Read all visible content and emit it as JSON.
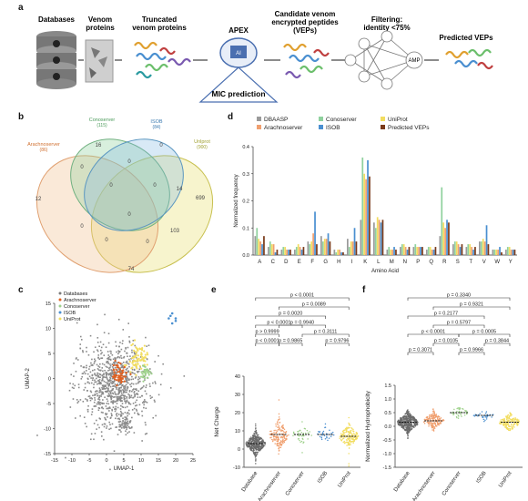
{
  "panel_letters": [
    "a",
    "b",
    "c",
    "d",
    "e",
    "f"
  ],
  "panel_a": {
    "steps": [
      "Databases",
      "Venom proteins",
      "Truncated venom proteins",
      "APEX",
      "Candidate venom encrypted peptides (VEPs)",
      "Filtering: identity <75%",
      "Predicted VEPs"
    ],
    "apex_chip": "AI",
    "mic_label": "MIC prediction",
    "amp_label": "AMP"
  },
  "panel_b": {
    "sets": [
      {
        "name": "Conoserver",
        "count": "(115)",
        "color": "#8fd19e"
      },
      {
        "name": "ISOB",
        "count": "(84)",
        "color": "#7fb6e0"
      },
      {
        "name": "Arachnoserver",
        "count": "(86)",
        "color": "#f0a070"
      },
      {
        "name": "Unlprot",
        "count": "(900)",
        "color": "#e8e070"
      }
    ],
    "regions": [
      "12",
      "16",
      "0",
      "699",
      "0",
      "0",
      "14",
      "0",
      "0",
      "0",
      "0",
      "103",
      "0",
      "0",
      "74"
    ]
  },
  "panel_c": {
    "legend": [
      "Databases",
      "Arachnoserver",
      "Conoserver",
      "ISOB",
      "UniProt"
    ],
    "colors": [
      "#7a7a7a",
      "#e06020",
      "#9dd18a",
      "#4a8fd0",
      "#f2dd60"
    ],
    "chart_data": {
      "type": "scatter",
      "xlabel": "UMAP-1",
      "ylabel": "UMAP-2",
      "xlim": [
        -15,
        25
      ],
      "ylim": [
        -15,
        15
      ],
      "xticks": [
        "-15",
        "-10",
        "-5",
        "0",
        "5",
        "10",
        "15",
        "20",
        "25"
      ],
      "yticks": [
        "15",
        "10",
        "5",
        "0",
        "-5",
        "-10",
        "-15"
      ]
    }
  },
  "panel_d": {
    "legend": [
      {
        "name": "DBAASP",
        "color": "#9a9a9a"
      },
      {
        "name": "Conoserver",
        "color": "#8fd19e"
      },
      {
        "name": "UniProt",
        "color": "#f2dd60"
      },
      {
        "name": "Arachnoserver",
        "color": "#f0a070"
      },
      {
        "name": "ISOB",
        "color": "#4a8fd0"
      },
      {
        "name": "Predicted VEPs",
        "color": "#7a3a1a"
      }
    ],
    "chart_data": {
      "type": "bar",
      "xlabel": "Amino Acid",
      "ylabel": "Normalized frequency",
      "ylim": [
        0,
        0.4
      ],
      "yticks": [
        "0.4",
        "0.3",
        "0.2",
        "0.1",
        "0.0"
      ],
      "categories": [
        "A",
        "C",
        "D",
        "E",
        "F",
        "G",
        "H",
        "I",
        "K",
        "L",
        "M",
        "N",
        "P",
        "Q",
        "R",
        "S",
        "T",
        "V",
        "W",
        "Y"
      ],
      "series": [
        {
          "name": "DBAASP",
          "values": [
            0.07,
            0.03,
            0.02,
            0.02,
            0.05,
            0.07,
            0.02,
            0.06,
            0.13,
            0.12,
            0.02,
            0.03,
            0.03,
            0.02,
            0.07,
            0.04,
            0.03,
            0.05,
            0.02,
            0.02
          ]
        },
        {
          "name": "Conoserver",
          "values": [
            0.1,
            0.05,
            0.03,
            0.03,
            0.04,
            0.05,
            0.01,
            0.03,
            0.36,
            0.1,
            0.03,
            0.04,
            0.04,
            0.03,
            0.25,
            0.05,
            0.04,
            0.05,
            0.02,
            0.03
          ]
        },
        {
          "name": "UniProt",
          "values": [
            0.06,
            0.04,
            0.03,
            0.04,
            0.05,
            0.06,
            0.02,
            0.05,
            0.3,
            0.14,
            0.02,
            0.04,
            0.03,
            0.03,
            0.12,
            0.05,
            0.04,
            0.06,
            0.02,
            0.03
          ]
        },
        {
          "name": "Arachnoserver",
          "values": [
            0.05,
            0.04,
            0.02,
            0.03,
            0.08,
            0.06,
            0.02,
            0.05,
            0.28,
            0.13,
            0.02,
            0.03,
            0.03,
            0.02,
            0.1,
            0.04,
            0.03,
            0.05,
            0.02,
            0.02
          ]
        },
        {
          "name": "ISOB",
          "values": [
            0.04,
            0.01,
            0.02,
            0.02,
            0.16,
            0.08,
            0.01,
            0.1,
            0.35,
            0.12,
            0.03,
            0.02,
            0.03,
            0.02,
            0.13,
            0.03,
            0.02,
            0.11,
            0.03,
            0.02
          ]
        },
        {
          "name": "Predicted VEPs",
          "values": [
            0.07,
            0.02,
            0.02,
            0.03,
            0.04,
            0.05,
            0.01,
            0.05,
            0.29,
            0.13,
            0.02,
            0.03,
            0.03,
            0.03,
            0.12,
            0.04,
            0.03,
            0.04,
            0.01,
            0.02
          ]
        }
      ]
    }
  },
  "panel_e": {
    "pvalues": [
      "p < 0.0001",
      "p = 0.0089",
      "p = 0.0020",
      "p < 0.0001",
      "p = 0.9940",
      "p > 0.9999",
      "p = 0.3111",
      "p < 0.0001",
      "p = 0.9865",
      "p = 0.9796"
    ],
    "chart_data": {
      "type": "scatter",
      "ylabel": "Net Charge",
      "ylim": [
        -10,
        40
      ],
      "yticks": [
        "40",
        "30",
        "20",
        "10",
        "0",
        "-10"
      ],
      "categories": [
        "Database",
        "Arachnoserver",
        "Conoserver",
        "ISOB",
        "UniProt"
      ],
      "medians": [
        3,
        8,
        8,
        8,
        7
      ]
    }
  },
  "panel_f": {
    "pvalues": [
      "p = 0.3340",
      "p = 0.9321",
      "p = 0.2177",
      "p = 0.5797",
      "p < 0.0001",
      "p = 0.0005",
      "p = 0.0105",
      "p = 0.3844",
      "p = 0.3071",
      "p = 0.9966"
    ],
    "chart_data": {
      "type": "scatter",
      "ylabel": "Normalized Hydrophobicity",
      "ylim": [
        -1.5,
        1.5
      ],
      "yticks": [
        "1.5",
        "1.0",
        "0.5",
        "0.0",
        "-0.5",
        "-1.0",
        "-1.5"
      ],
      "categories": [
        "Database",
        "Arachnoserver",
        "Conoserver",
        "ISOB",
        "UniProt"
      ],
      "medians": [
        0.15,
        0.2,
        0.5,
        0.4,
        0.15
      ]
    }
  }
}
